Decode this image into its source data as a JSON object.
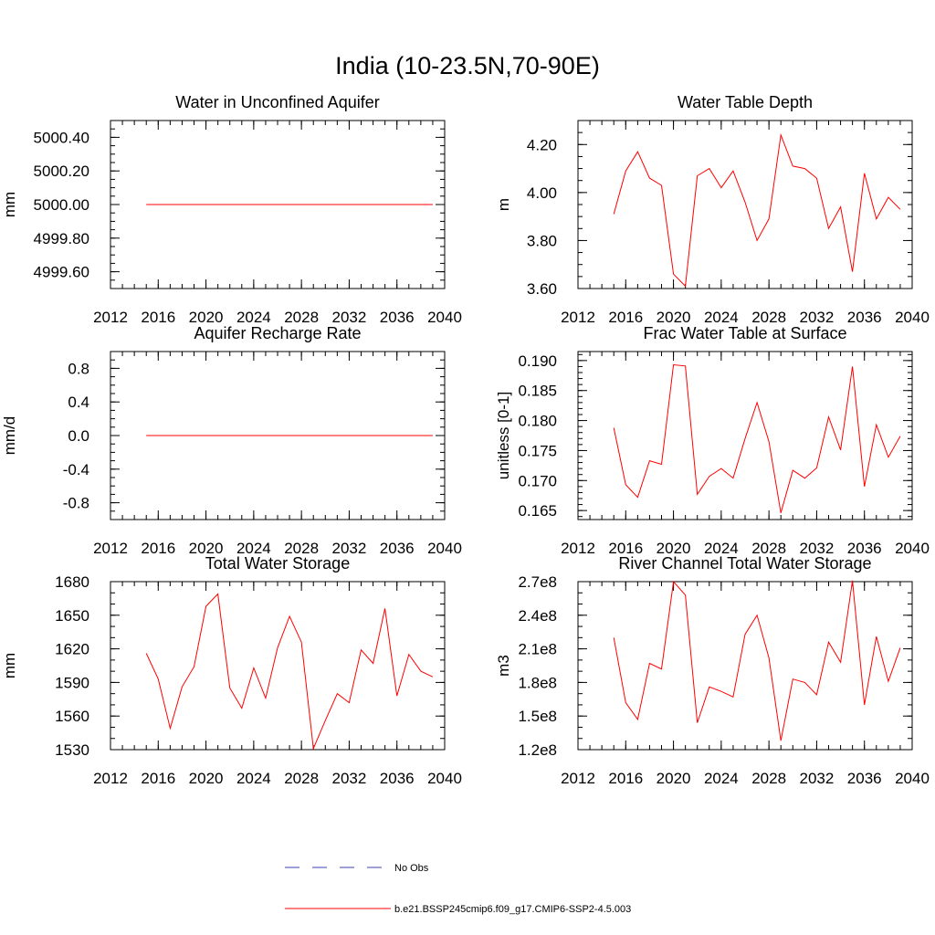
{
  "figure": {
    "title": "India (10-23.5N,70-90E)"
  },
  "legend": {
    "entries": [
      {
        "label": "No Obs",
        "color": "#3b3fb0",
        "style": "dashed"
      },
      {
        "label": "b.e21.BSSP245cmip6.f09_g17.CMIP6-SSP2-4.5.003",
        "color": "#ff0000",
        "style": "solid"
      }
    ]
  },
  "chart_data": [
    {
      "type": "line",
      "title": "Water in Unconfined Aquifer",
      "xlabel": "",
      "ylabel": "mm",
      "xlim": [
        2012,
        2040
      ],
      "ylim": [
        4999.5,
        5000.5
      ],
      "x_ticks": [
        2012,
        2016,
        2020,
        2024,
        2028,
        2032,
        2036,
        2040
      ],
      "x_tick_labels": [
        "2012",
        "2016",
        "2020",
        "2024",
        "2028",
        "2032",
        "2036",
        "2040"
      ],
      "y_ticks": [
        4999.6,
        4999.8,
        5000.0,
        5000.2,
        5000.4
      ],
      "y_tick_labels": [
        "4999.60",
        "4999.80",
        "5000.00",
        "5000.20",
        "5000.40"
      ],
      "x_minor_step": 1,
      "y_minor_step": 0.05,
      "series": [
        {
          "color": "#ff0000",
          "x": [
            2015,
            2016,
            2017,
            2018,
            2019,
            2020,
            2021,
            2022,
            2023,
            2024,
            2025,
            2026,
            2027,
            2028,
            2029,
            2030,
            2031,
            2032,
            2033,
            2034,
            2035,
            2036,
            2037,
            2038,
            2039
          ],
          "values": [
            5000,
            5000,
            5000,
            5000,
            5000,
            5000,
            5000,
            5000,
            5000,
            5000,
            5000,
            5000,
            5000,
            5000,
            5000,
            5000,
            5000,
            5000,
            5000,
            5000,
            5000,
            5000,
            5000,
            5000,
            5000
          ]
        }
      ]
    },
    {
      "type": "line",
      "title": "Water Table Depth",
      "xlabel": "",
      "ylabel": "m",
      "xlim": [
        2012,
        2040
      ],
      "ylim": [
        3.6,
        4.3
      ],
      "x_ticks": [
        2012,
        2016,
        2020,
        2024,
        2028,
        2032,
        2036,
        2040
      ],
      "x_tick_labels": [
        "2012",
        "2016",
        "2020",
        "2024",
        "2028",
        "2032",
        "2036",
        "2040"
      ],
      "y_ticks": [
        3.6,
        3.8,
        4.0,
        4.2
      ],
      "y_tick_labels": [
        "3.60",
        "3.80",
        "4.00",
        "4.20"
      ],
      "x_minor_step": 1,
      "y_minor_step": 0.05,
      "series": [
        {
          "color": "#ff0000",
          "x": [
            2015,
            2016,
            2017,
            2018,
            2019,
            2020,
            2021,
            2022,
            2023,
            2024,
            2025,
            2026,
            2027,
            2028,
            2029,
            2030,
            2031,
            2032,
            2033,
            2034,
            2035,
            2036,
            2037,
            2038,
            2039
          ],
          "values": [
            3.91,
            4.09,
            4.17,
            4.06,
            4.03,
            3.66,
            3.61,
            4.07,
            4.1,
            4.02,
            4.09,
            3.96,
            3.8,
            3.89,
            4.24,
            4.11,
            4.1,
            4.06,
            3.85,
            3.94,
            3.67,
            4.08,
            3.89,
            3.98,
            3.93
          ]
        }
      ]
    },
    {
      "type": "line",
      "title": "Aquifer Recharge Rate",
      "xlabel": "",
      "ylabel": "mm/d",
      "xlim": [
        2012,
        2040
      ],
      "ylim": [
        -1.0,
        1.0
      ],
      "x_ticks": [
        2012,
        2016,
        2020,
        2024,
        2028,
        2032,
        2036,
        2040
      ],
      "x_tick_labels": [
        "2012",
        "2016",
        "2020",
        "2024",
        "2028",
        "2032",
        "2036",
        "2040"
      ],
      "y_ticks": [
        -0.8,
        -0.4,
        0.0,
        0.4,
        0.8
      ],
      "y_tick_labels": [
        "-0.8",
        "-0.4",
        "0.0",
        "0.4",
        "0.8"
      ],
      "x_minor_step": 1,
      "y_minor_step": 0.1,
      "series": [
        {
          "color": "#ff0000",
          "x": [
            2015,
            2016,
            2017,
            2018,
            2019,
            2020,
            2021,
            2022,
            2023,
            2024,
            2025,
            2026,
            2027,
            2028,
            2029,
            2030,
            2031,
            2032,
            2033,
            2034,
            2035,
            2036,
            2037,
            2038,
            2039
          ],
          "values": [
            0,
            0,
            0,
            0,
            0,
            0,
            0,
            0,
            0,
            0,
            0,
            0,
            0,
            0,
            0,
            0,
            0,
            0,
            0,
            0,
            0,
            0,
            0,
            0,
            0
          ]
        }
      ]
    },
    {
      "type": "line",
      "title": "Frac Water Table at Surface",
      "xlabel": "",
      "ylabel": "unitless [0-1]",
      "xlim": [
        2012,
        2040
      ],
      "ylim": [
        0.1635,
        0.1915
      ],
      "x_ticks": [
        2012,
        2016,
        2020,
        2024,
        2028,
        2032,
        2036,
        2040
      ],
      "x_tick_labels": [
        "2012",
        "2016",
        "2020",
        "2024",
        "2028",
        "2032",
        "2036",
        "2040"
      ],
      "y_ticks": [
        0.165,
        0.17,
        0.175,
        0.18,
        0.185,
        0.19
      ],
      "y_tick_labels": [
        "0.165",
        "0.170",
        "0.175",
        "0.180",
        "0.185",
        "0.190"
      ],
      "x_minor_step": 1,
      "y_minor_step": 0.001,
      "series": [
        {
          "color": "#ff0000",
          "x": [
            2015,
            2016,
            2017,
            2018,
            2019,
            2020,
            2021,
            2022,
            2023,
            2024,
            2025,
            2026,
            2027,
            2028,
            2029,
            2030,
            2031,
            2032,
            2033,
            2034,
            2035,
            2036,
            2037,
            2038,
            2039
          ],
          "values": [
            0.1788,
            0.1693,
            0.1672,
            0.1733,
            0.1727,
            0.1893,
            0.1891,
            0.1677,
            0.1707,
            0.172,
            0.1704,
            0.177,
            0.183,
            0.1765,
            0.1646,
            0.1717,
            0.1704,
            0.1721,
            0.1806,
            0.1751,
            0.189,
            0.169,
            0.1793,
            0.1739,
            0.1774
          ]
        }
      ]
    },
    {
      "type": "line",
      "title": "Total Water Storage",
      "xlabel": "",
      "ylabel": "mm",
      "xlim": [
        2012,
        2040
      ],
      "ylim": [
        1530,
        1680
      ],
      "x_ticks": [
        2012,
        2016,
        2020,
        2024,
        2028,
        2032,
        2036,
        2040
      ],
      "x_tick_labels": [
        "2012",
        "2016",
        "2020",
        "2024",
        "2028",
        "2032",
        "2036",
        "2040"
      ],
      "y_ticks": [
        1530,
        1560,
        1590,
        1620,
        1650,
        1680
      ],
      "y_tick_labels": [
        "1530",
        "1560",
        "1590",
        "1620",
        "1650",
        "1680"
      ],
      "x_minor_step": 1,
      "y_minor_step": 10,
      "series": [
        {
          "color": "#ff0000",
          "x": [
            2015,
            2016,
            2017,
            2018,
            2019,
            2020,
            2021,
            2022,
            2023,
            2024,
            2025,
            2026,
            2027,
            2028,
            2029,
            2030,
            2031,
            2032,
            2033,
            2034,
            2035,
            2036,
            2037,
            2038,
            2039
          ],
          "values": [
            1616,
            1593,
            1549,
            1586,
            1604,
            1658,
            1669,
            1585,
            1567,
            1603,
            1576,
            1621,
            1649,
            1626,
            1531,
            1556,
            1580,
            1572,
            1619,
            1607,
            1656,
            1578,
            1615,
            1600,
            1595
          ]
        }
      ]
    },
    {
      "type": "line",
      "title": "River Channel Total Water Storage",
      "xlabel": "",
      "ylabel": "m3",
      "xlim": [
        2012,
        2040
      ],
      "ylim": [
        120000000.0,
        270000000.0
      ],
      "x_ticks": [
        2012,
        2016,
        2020,
        2024,
        2028,
        2032,
        2036,
        2040
      ],
      "x_tick_labels": [
        "2012",
        "2016",
        "2020",
        "2024",
        "2028",
        "2032",
        "2036",
        "2040"
      ],
      "y_ticks": [
        120000000.0,
        150000000.0,
        180000000.0,
        210000000.0,
        240000000.0,
        270000000.0
      ],
      "y_tick_labels": [
        "1.2e8",
        "1.5e8",
        "1.8e8",
        "2.1e8",
        "2.4e8",
        "2.7e8"
      ],
      "x_minor_step": 1,
      "y_minor_step": 10000000.0,
      "series": [
        {
          "color": "#ff0000",
          "x": [
            2015,
            2016,
            2017,
            2018,
            2019,
            2020,
            2021,
            2022,
            2023,
            2024,
            2025,
            2026,
            2027,
            2028,
            2029,
            2030,
            2031,
            2032,
            2033,
            2034,
            2035,
            2036,
            2037,
            2038,
            2039
          ],
          "values": [
            220000000.0,
            162000000.0,
            147000000.0,
            197000000.0,
            192000000.0,
            270000000.0,
            258000000.0,
            144000000.0,
            176000000.0,
            172000000.0,
            167000000.0,
            223000000.0,
            240000000.0,
            202000000.0,
            128000000.0,
            183000000.0,
            180000000.0,
            169000000.0,
            216000000.0,
            198000000.0,
            271000000.0,
            160000000.0,
            221000000.0,
            181000000.0,
            211000000.0
          ]
        }
      ]
    }
  ]
}
